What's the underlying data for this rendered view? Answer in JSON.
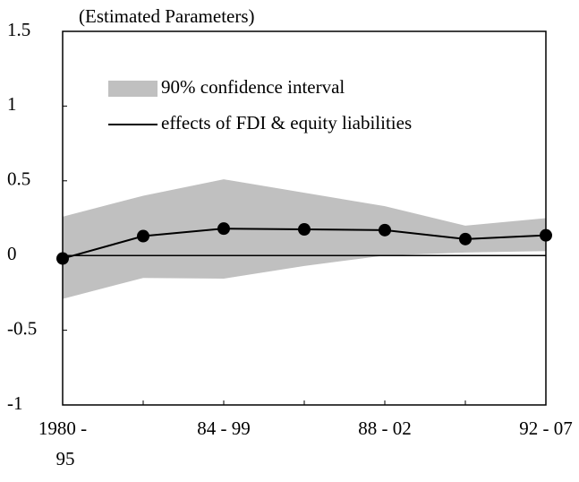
{
  "chart_data": {
    "type": "line",
    "subtitle": "(Estimated Parameters)",
    "categories": [
      "1980 -\n95",
      null,
      "84 - 99",
      null,
      "88 - 02",
      null,
      "92 - 07"
    ],
    "series": [
      {
        "name": "90% confidence interval",
        "type": "band",
        "color": "#c0c0c0",
        "upper": [
          0.26,
          0.4,
          0.51,
          0.42,
          0.33,
          0.2,
          0.25
        ],
        "lower": [
          -0.29,
          -0.15,
          -0.155,
          -0.07,
          0.0,
          0.02,
          0.03
        ]
      },
      {
        "name": "effects of FDI & equity liabilities",
        "type": "line",
        "color": "#000000",
        "values": [
          -0.02,
          0.13,
          0.18,
          0.175,
          0.17,
          0.11,
          0.135
        ]
      }
    ],
    "ylim": [
      -1,
      1.5
    ],
    "yticks": [
      -1,
      -0.5,
      0,
      0.5,
      1,
      1.5
    ],
    "grid": false
  }
}
